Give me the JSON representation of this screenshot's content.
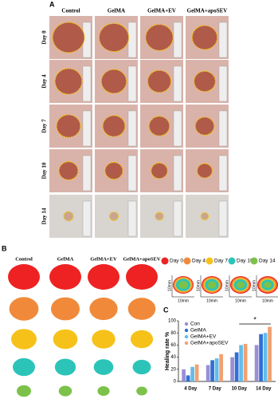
{
  "panel_a": {
    "label": "A",
    "columns": [
      "Control",
      "GelMA",
      "GelMA+EV",
      "GelMA+apoSEV"
    ],
    "rows": [
      "Day 0",
      "Day 4",
      "Day 7",
      "Day 10",
      "Day 14"
    ]
  },
  "panel_b": {
    "label": "B",
    "columns": [
      "Control",
      "GelMA",
      "GelMA+EV",
      "GelMA+apoSEV"
    ],
    "legend": [
      {
        "name": "Day 0",
        "color": "#ee2222"
      },
      {
        "name": "Day 4",
        "color": "#f08a3a"
      },
      {
        "name": "Day 7",
        "color": "#f6c21a"
      },
      {
        "name": "Day 10",
        "color": "#2cc4b8"
      },
      {
        "name": "Day 14",
        "color": "#7cc24a"
      }
    ],
    "scale_label": "10mm"
  },
  "chart_data": {
    "type": "bar",
    "panel_label": "C",
    "ylabel": "Healing rate %",
    "categories": [
      "4 Day",
      "7 Day",
      "10 Day",
      "14 Day"
    ],
    "series": [
      {
        "name": "Con",
        "color": "#9a8fd4",
        "values": [
          20,
          27,
          40,
          60
        ]
      },
      {
        "name": "GelMA",
        "color": "#2f6fd6",
        "values": [
          10,
          35,
          48,
          78
        ]
      },
      {
        "name": "GelMA+EV",
        "color": "#62bde9",
        "values": [
          24,
          38,
          60,
          80
        ]
      },
      {
        "name": "GelMA+apoSEV",
        "color": "#f2a071",
        "values": [
          28,
          45,
          62,
          90
        ]
      }
    ],
    "ylim": [
      0,
      100
    ],
    "yticks": [
      0,
      20,
      40,
      60,
      80,
      100
    ],
    "annotation": "*"
  }
}
